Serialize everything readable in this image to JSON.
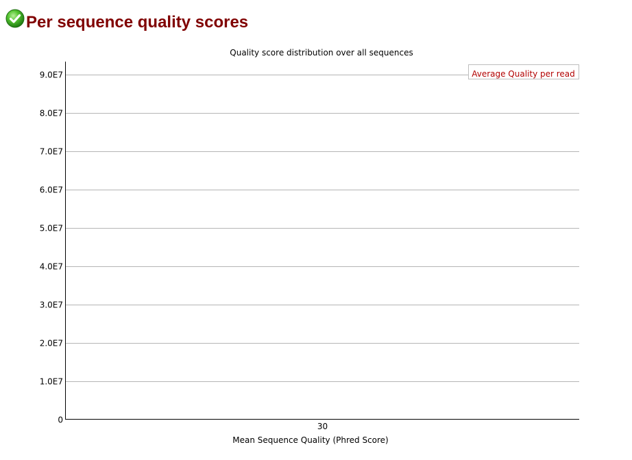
{
  "module": {
    "status": "pass",
    "title": "Per sequence quality scores"
  },
  "colors": {
    "heading": "#800000",
    "series": "#b20000",
    "gridline": "#b4b4b4",
    "axis": "#000000",
    "pass_icon": "#2e9a1c"
  },
  "icons": {
    "status": "pass-check-icon"
  },
  "chart_data": {
    "type": "line",
    "title": "Quality score distribution over all sequences",
    "xlabel": "Mean Sequence Quality (Phred Score)",
    "ylabel": "",
    "x": [
      30
    ],
    "x_tick_labels": [
      "30"
    ],
    "y_tick_labels": [
      "0",
      "1.0E7",
      "2.0E7",
      "3.0E7",
      "4.0E7",
      "5.0E7",
      "6.0E7",
      "7.0E7",
      "8.0E7",
      "9.0E7"
    ],
    "y_ticks": [
      0,
      10000000,
      20000000,
      30000000,
      40000000,
      50000000,
      60000000,
      70000000,
      80000000,
      90000000
    ],
    "ylim": [
      0,
      90000000
    ],
    "grid": true,
    "legend_position": "top-right",
    "series": [
      {
        "name": "Average Quality per read",
        "x": [
          30
        ],
        "values": [
          null
        ]
      }
    ]
  }
}
